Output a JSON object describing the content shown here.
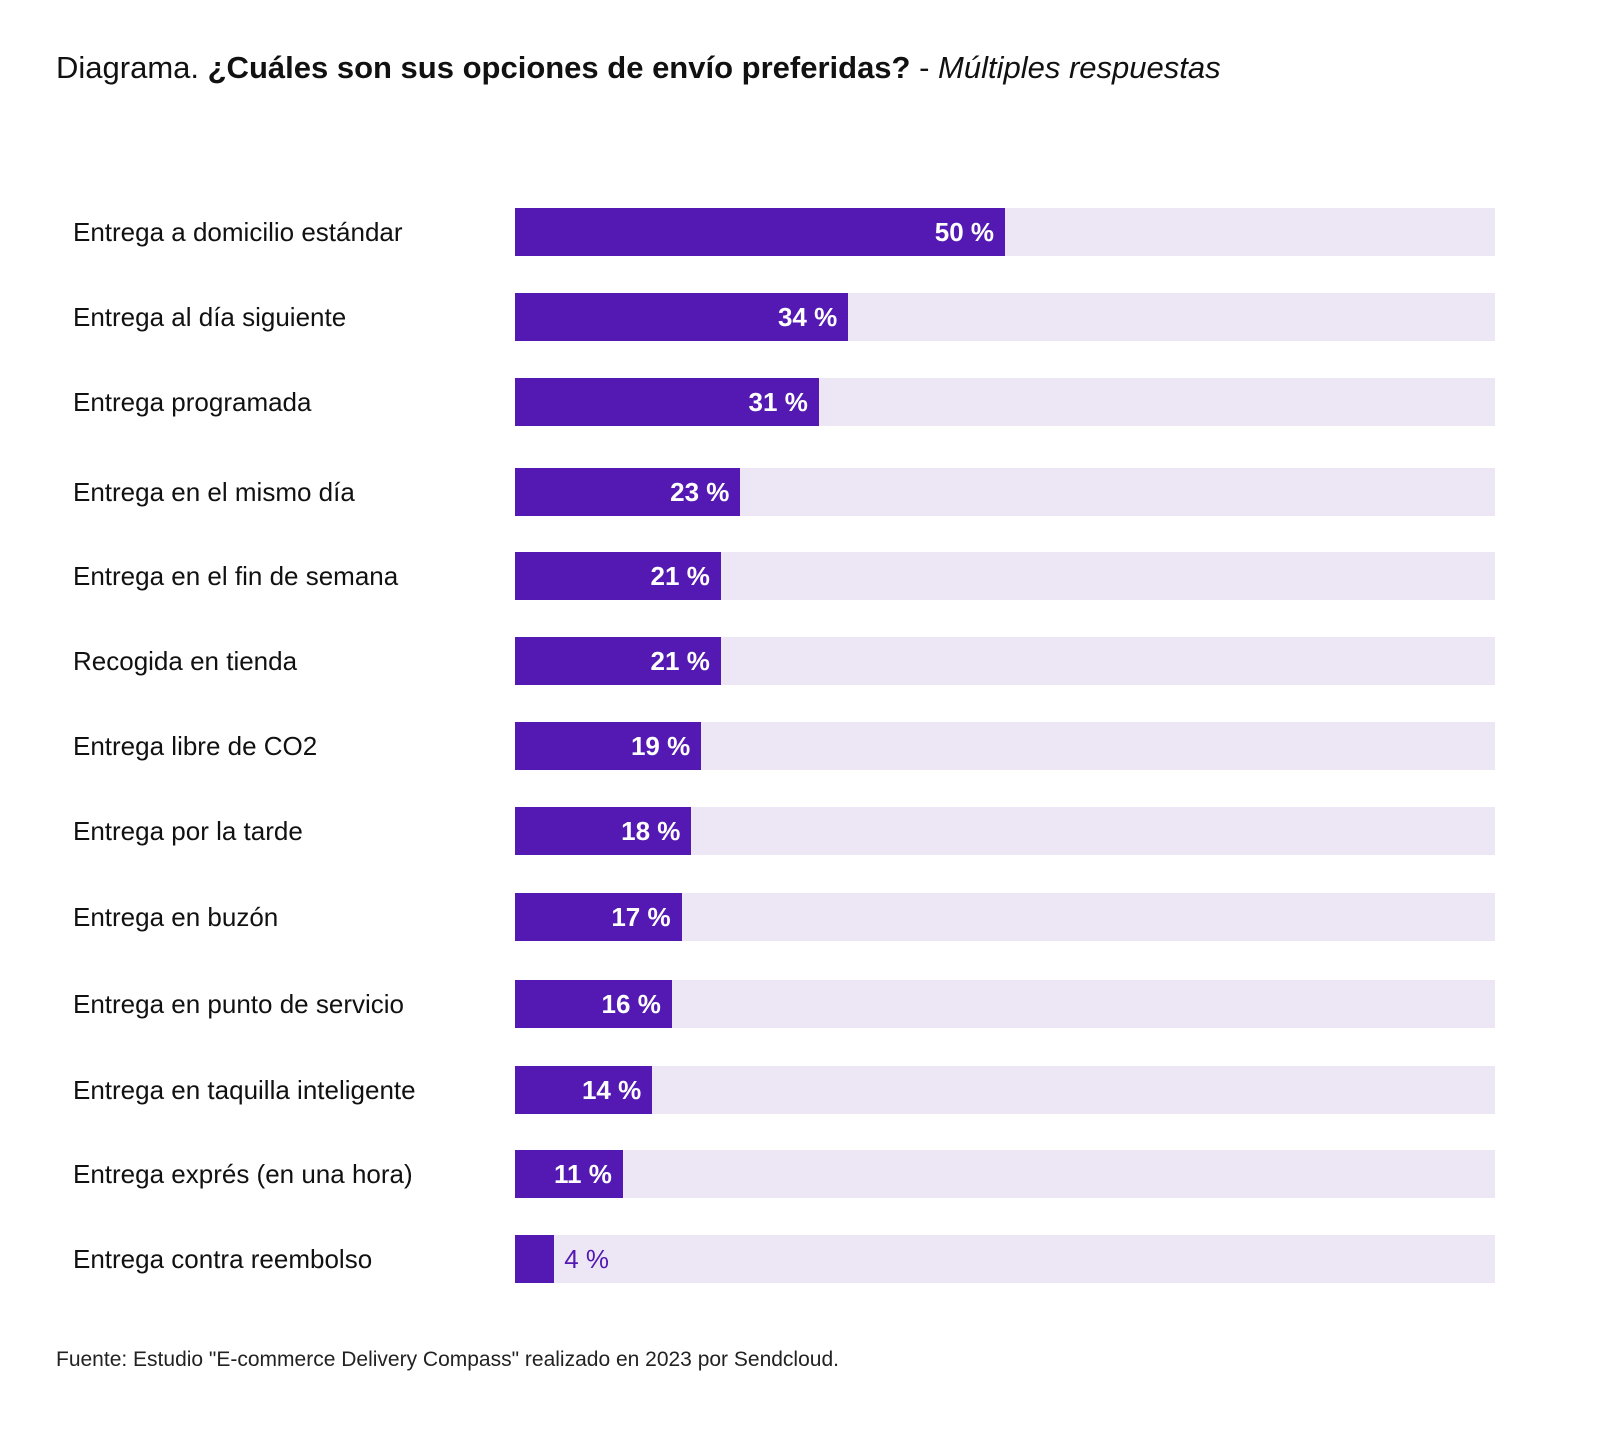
{
  "title": {
    "prefix": "Diagrama.",
    "question": "¿Cuáles son sus opciones de envío preferidas?",
    "separator": " - ",
    "note": "Múltiples respuestas"
  },
  "chart_data": {
    "type": "bar",
    "orientation": "horizontal",
    "categories": [
      "Entrega a domicilio estándar",
      "Entrega al día siguiente",
      "Entrega programada",
      "Entrega en el mismo día",
      "Entrega en el fin de semana",
      "Recogida en tienda",
      "Entrega libre de CO2",
      "Entrega por la tarde",
      "Entrega en buzón",
      "Entrega en punto de servicio",
      "Entrega en taquilla inteligente",
      "Entrega exprés (en una hora)",
      "Entrega contra reembolso"
    ],
    "values": [
      50,
      34,
      31,
      23,
      21,
      21,
      19,
      18,
      17,
      16,
      14,
      11,
      4
    ],
    "value_labels": [
      "50 %",
      "34 %",
      "31 %",
      "23 %",
      "21 %",
      "21 %",
      "19 %",
      "18 %",
      "17 %",
      "16 %",
      "14 %",
      "11 %",
      "4 %"
    ],
    "xlim": [
      0,
      100
    ],
    "grid": false,
    "colors": {
      "bar": "#5319B2",
      "track": "#EDE6F5",
      "label_inside": "#FFFFFF",
      "label_outside": "#5319B2"
    }
  },
  "source": "Fuente: Estudio \"E-commerce Delivery Compass\" realizado en 2023 por Sendcloud."
}
